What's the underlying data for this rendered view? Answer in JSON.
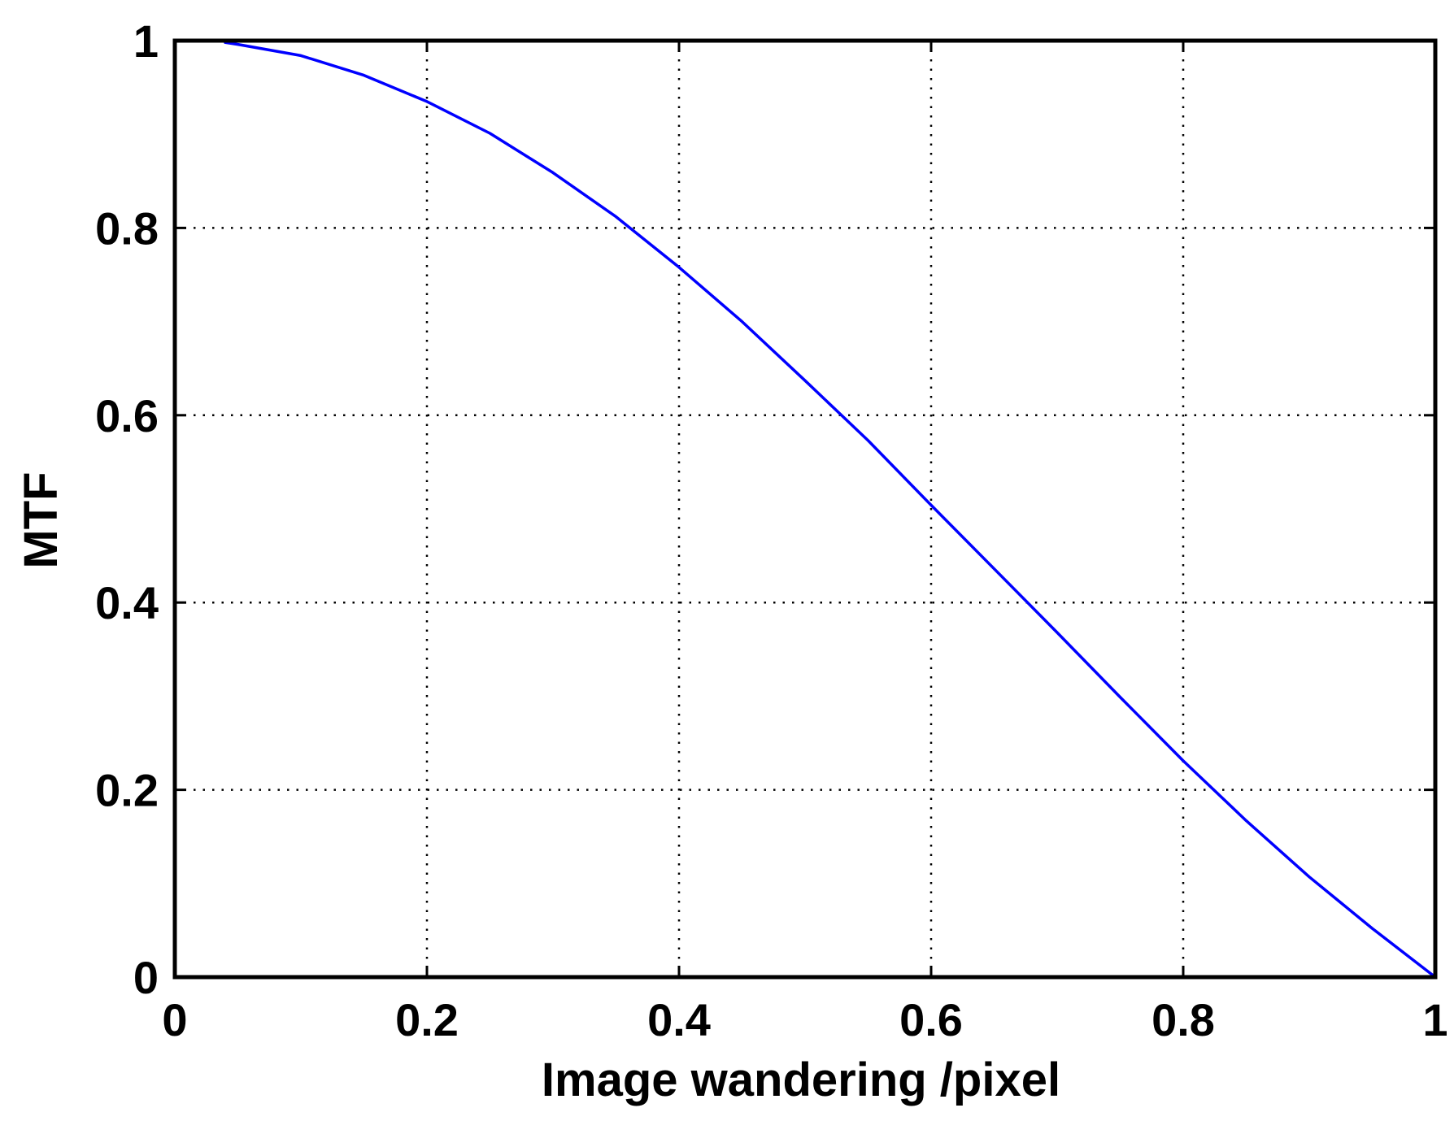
{
  "chart_data": {
    "type": "line",
    "title": "",
    "xlabel": "Image wandering /pixel",
    "ylabel": "MTF",
    "xlim": [
      0,
      1
    ],
    "ylim": [
      0,
      1
    ],
    "xticks": [
      0,
      0.2,
      0.4,
      0.6,
      0.8,
      1
    ],
    "yticks": [
      0,
      0.2,
      0.4,
      0.6,
      0.8,
      1
    ],
    "xtick_labels": [
      "0",
      "0.2",
      "0.4",
      "0.6",
      "0.8",
      "1"
    ],
    "ytick_labels": [
      "0",
      "0.2",
      "0.4",
      "0.6",
      "0.8",
      "1"
    ],
    "grid": true,
    "legend": "none",
    "series": [
      {
        "color": "#0000ff",
        "x": [
          0.04,
          0.05,
          0.1,
          0.15,
          0.2,
          0.25,
          0.3,
          0.35,
          0.4,
          0.45,
          0.5,
          0.55,
          0.6,
          0.65,
          0.7,
          0.75,
          0.8,
          0.85,
          0.9,
          0.95,
          1.0
        ],
        "y": [
          0.998,
          0.996,
          0.984,
          0.963,
          0.935,
          0.901,
          0.859,
          0.812,
          0.758,
          0.7,
          0.637,
          0.573,
          0.504,
          0.436,
          0.368,
          0.299,
          0.231,
          0.167,
          0.107,
          0.052,
          0.0
        ]
      }
    ]
  }
}
